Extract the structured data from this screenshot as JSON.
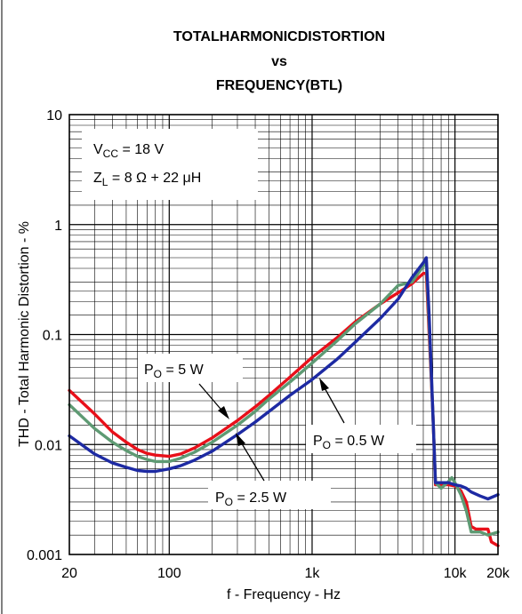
{
  "chart_data": {
    "type": "line",
    "title": [
      "TOTALHARMONICDISTORTION",
      "vs",
      "FREQUENCY(BTL)"
    ],
    "xlabel": "f - Frequency - Hz",
    "ylabel": "THD - Total Harmonic Distortion - %",
    "x_scale": "log",
    "y_scale": "log",
    "xlim": [
      20,
      20000
    ],
    "ylim": [
      0.001,
      10
    ],
    "grid": true,
    "x_ticks": [
      {
        "value": 20,
        "label": "20"
      },
      {
        "value": 100,
        "label": "100"
      },
      {
        "value": 1000,
        "label": "1k"
      },
      {
        "value": 10000,
        "label": "10k"
      },
      {
        "value": 20000,
        "label": "20k"
      }
    ],
    "y_ticks": [
      {
        "value": 0.001,
        "label": "0.001"
      },
      {
        "value": 0.01,
        "label": "0.01"
      },
      {
        "value": 0.1,
        "label": "0.1"
      },
      {
        "value": 1,
        "label": "1"
      },
      {
        "value": 10,
        "label": "10"
      }
    ],
    "conditions": {
      "vcc": {
        "sym": "V",
        "sub": "CC",
        "rest": " = 18 V"
      },
      "zl": {
        "sym": "Z",
        "sub": "L",
        "rest": " = 8 Ω + 22 μH"
      }
    },
    "series": [
      {
        "label_sym": "P",
        "label_sub": "O",
        "label_rest": " = 5 W",
        "color": "#e8101a",
        "points": [
          [
            20,
            0.031
          ],
          [
            30,
            0.019
          ],
          [
            40,
            0.013
          ],
          [
            50,
            0.0105
          ],
          [
            60,
            0.009
          ],
          [
            70,
            0.0083
          ],
          [
            80,
            0.008
          ],
          [
            100,
            0.0078
          ],
          [
            120,
            0.0082
          ],
          [
            150,
            0.0093
          ],
          [
            200,
            0.0115
          ],
          [
            300,
            0.0165
          ],
          [
            400,
            0.022
          ],
          [
            500,
            0.028
          ],
          [
            700,
            0.041
          ],
          [
            1000,
            0.062
          ],
          [
            1500,
            0.094
          ],
          [
            2000,
            0.13
          ],
          [
            3000,
            0.19
          ],
          [
            4000,
            0.24
          ],
          [
            5000,
            0.29
          ],
          [
            6000,
            0.36
          ],
          [
            6300,
            0.36
          ],
          [
            6600,
            0.1
          ],
          [
            7000,
            0.02
          ],
          [
            7300,
            0.0043
          ],
          [
            8000,
            0.0043
          ],
          [
            9000,
            0.0043
          ],
          [
            10000,
            0.0042
          ],
          [
            11000,
            0.0038
          ],
          [
            12000,
            0.003
          ],
          [
            13000,
            0.0018
          ],
          [
            14000,
            0.0017
          ],
          [
            17000,
            0.0017
          ],
          [
            18000,
            0.0013
          ],
          [
            20000,
            0.0012
          ]
        ]
      },
      {
        "label_sym": "P",
        "label_sub": "O",
        "label_rest": " = 2.5 W",
        "color": "#5e9a73",
        "points": [
          [
            20,
            0.023
          ],
          [
            30,
            0.014
          ],
          [
            40,
            0.0105
          ],
          [
            50,
            0.0088
          ],
          [
            60,
            0.0078
          ],
          [
            70,
            0.0073
          ],
          [
            80,
            0.007
          ],
          [
            100,
            0.007
          ],
          [
            120,
            0.0075
          ],
          [
            150,
            0.0085
          ],
          [
            200,
            0.0105
          ],
          [
            300,
            0.015
          ],
          [
            400,
            0.02
          ],
          [
            500,
            0.026
          ],
          [
            700,
            0.037
          ],
          [
            1000,
            0.055
          ],
          [
            1500,
            0.088
          ],
          [
            2000,
            0.125
          ],
          [
            3000,
            0.19
          ],
          [
            4000,
            0.28
          ],
          [
            5000,
            0.3
          ],
          [
            6000,
            0.42
          ],
          [
            6300,
            0.45
          ],
          [
            6600,
            0.12
          ],
          [
            7000,
            0.02
          ],
          [
            7300,
            0.0045
          ],
          [
            8000,
            0.004
          ],
          [
            9000,
            0.0046
          ],
          [
            9500,
            0.005
          ],
          [
            10000,
            0.0045
          ],
          [
            11000,
            0.0035
          ],
          [
            12000,
            0.0025
          ],
          [
            13000,
            0.0016
          ],
          [
            15000,
            0.0016
          ],
          [
            17000,
            0.0015
          ],
          [
            20000,
            0.0016
          ]
        ]
      },
      {
        "label_sym": "P",
        "label_sub": "O",
        "label_rest": " = 0.5 W",
        "color": "#1d2aa3",
        "points": [
          [
            20,
            0.012
          ],
          [
            30,
            0.0082
          ],
          [
            40,
            0.0068
          ],
          [
            50,
            0.0062
          ],
          [
            60,
            0.0058
          ],
          [
            70,
            0.0057
          ],
          [
            80,
            0.0057
          ],
          [
            100,
            0.006
          ],
          [
            120,
            0.0064
          ],
          [
            150,
            0.0072
          ],
          [
            200,
            0.0087
          ],
          [
            300,
            0.0123
          ],
          [
            400,
            0.016
          ],
          [
            500,
            0.02
          ],
          [
            700,
            0.028
          ],
          [
            1000,
            0.039
          ],
          [
            1500,
            0.06
          ],
          [
            2000,
            0.085
          ],
          [
            3000,
            0.14
          ],
          [
            4000,
            0.21
          ],
          [
            5000,
            0.33
          ],
          [
            6000,
            0.45
          ],
          [
            6300,
            0.5
          ],
          [
            6600,
            0.15
          ],
          [
            7000,
            0.02
          ],
          [
            7300,
            0.0045
          ],
          [
            8000,
            0.0045
          ],
          [
            9000,
            0.0045
          ],
          [
            10000,
            0.0043
          ],
          [
            11000,
            0.0042
          ],
          [
            12000,
            0.004
          ],
          [
            13000,
            0.0037
          ],
          [
            15000,
            0.0034
          ],
          [
            17000,
            0.0032
          ],
          [
            20000,
            0.0035
          ]
        ]
      }
    ]
  }
}
